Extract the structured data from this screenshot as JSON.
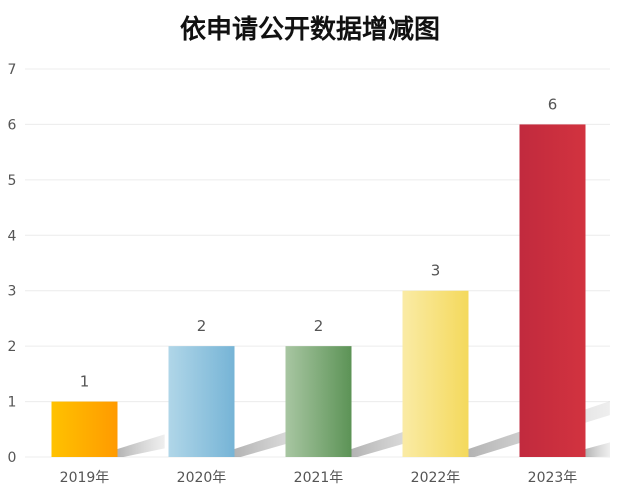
{
  "chart_data": {
    "type": "bar",
    "title": "依申请公开数据增减图",
    "categories": [
      "2019年",
      "2020年",
      "2021年",
      "2022年",
      "2023年"
    ],
    "values": [
      1,
      2,
      2,
      3,
      6
    ],
    "xlabel": "",
    "ylabel": "",
    "ylim": [
      0,
      7
    ],
    "yticks": [
      0,
      1,
      2,
      3,
      4,
      5,
      6,
      7
    ],
    "grid": true,
    "legend": "none",
    "colors": [
      [
        "#FFC200",
        "#FF9A00"
      ],
      [
        "#B0D6E8",
        "#76B4D6"
      ],
      [
        "#A8C6A2",
        "#5C9356"
      ],
      [
        "#FAEBA5",
        "#F4D95C"
      ],
      [
        "#C12A3E",
        "#D2333F"
      ]
    ]
  }
}
